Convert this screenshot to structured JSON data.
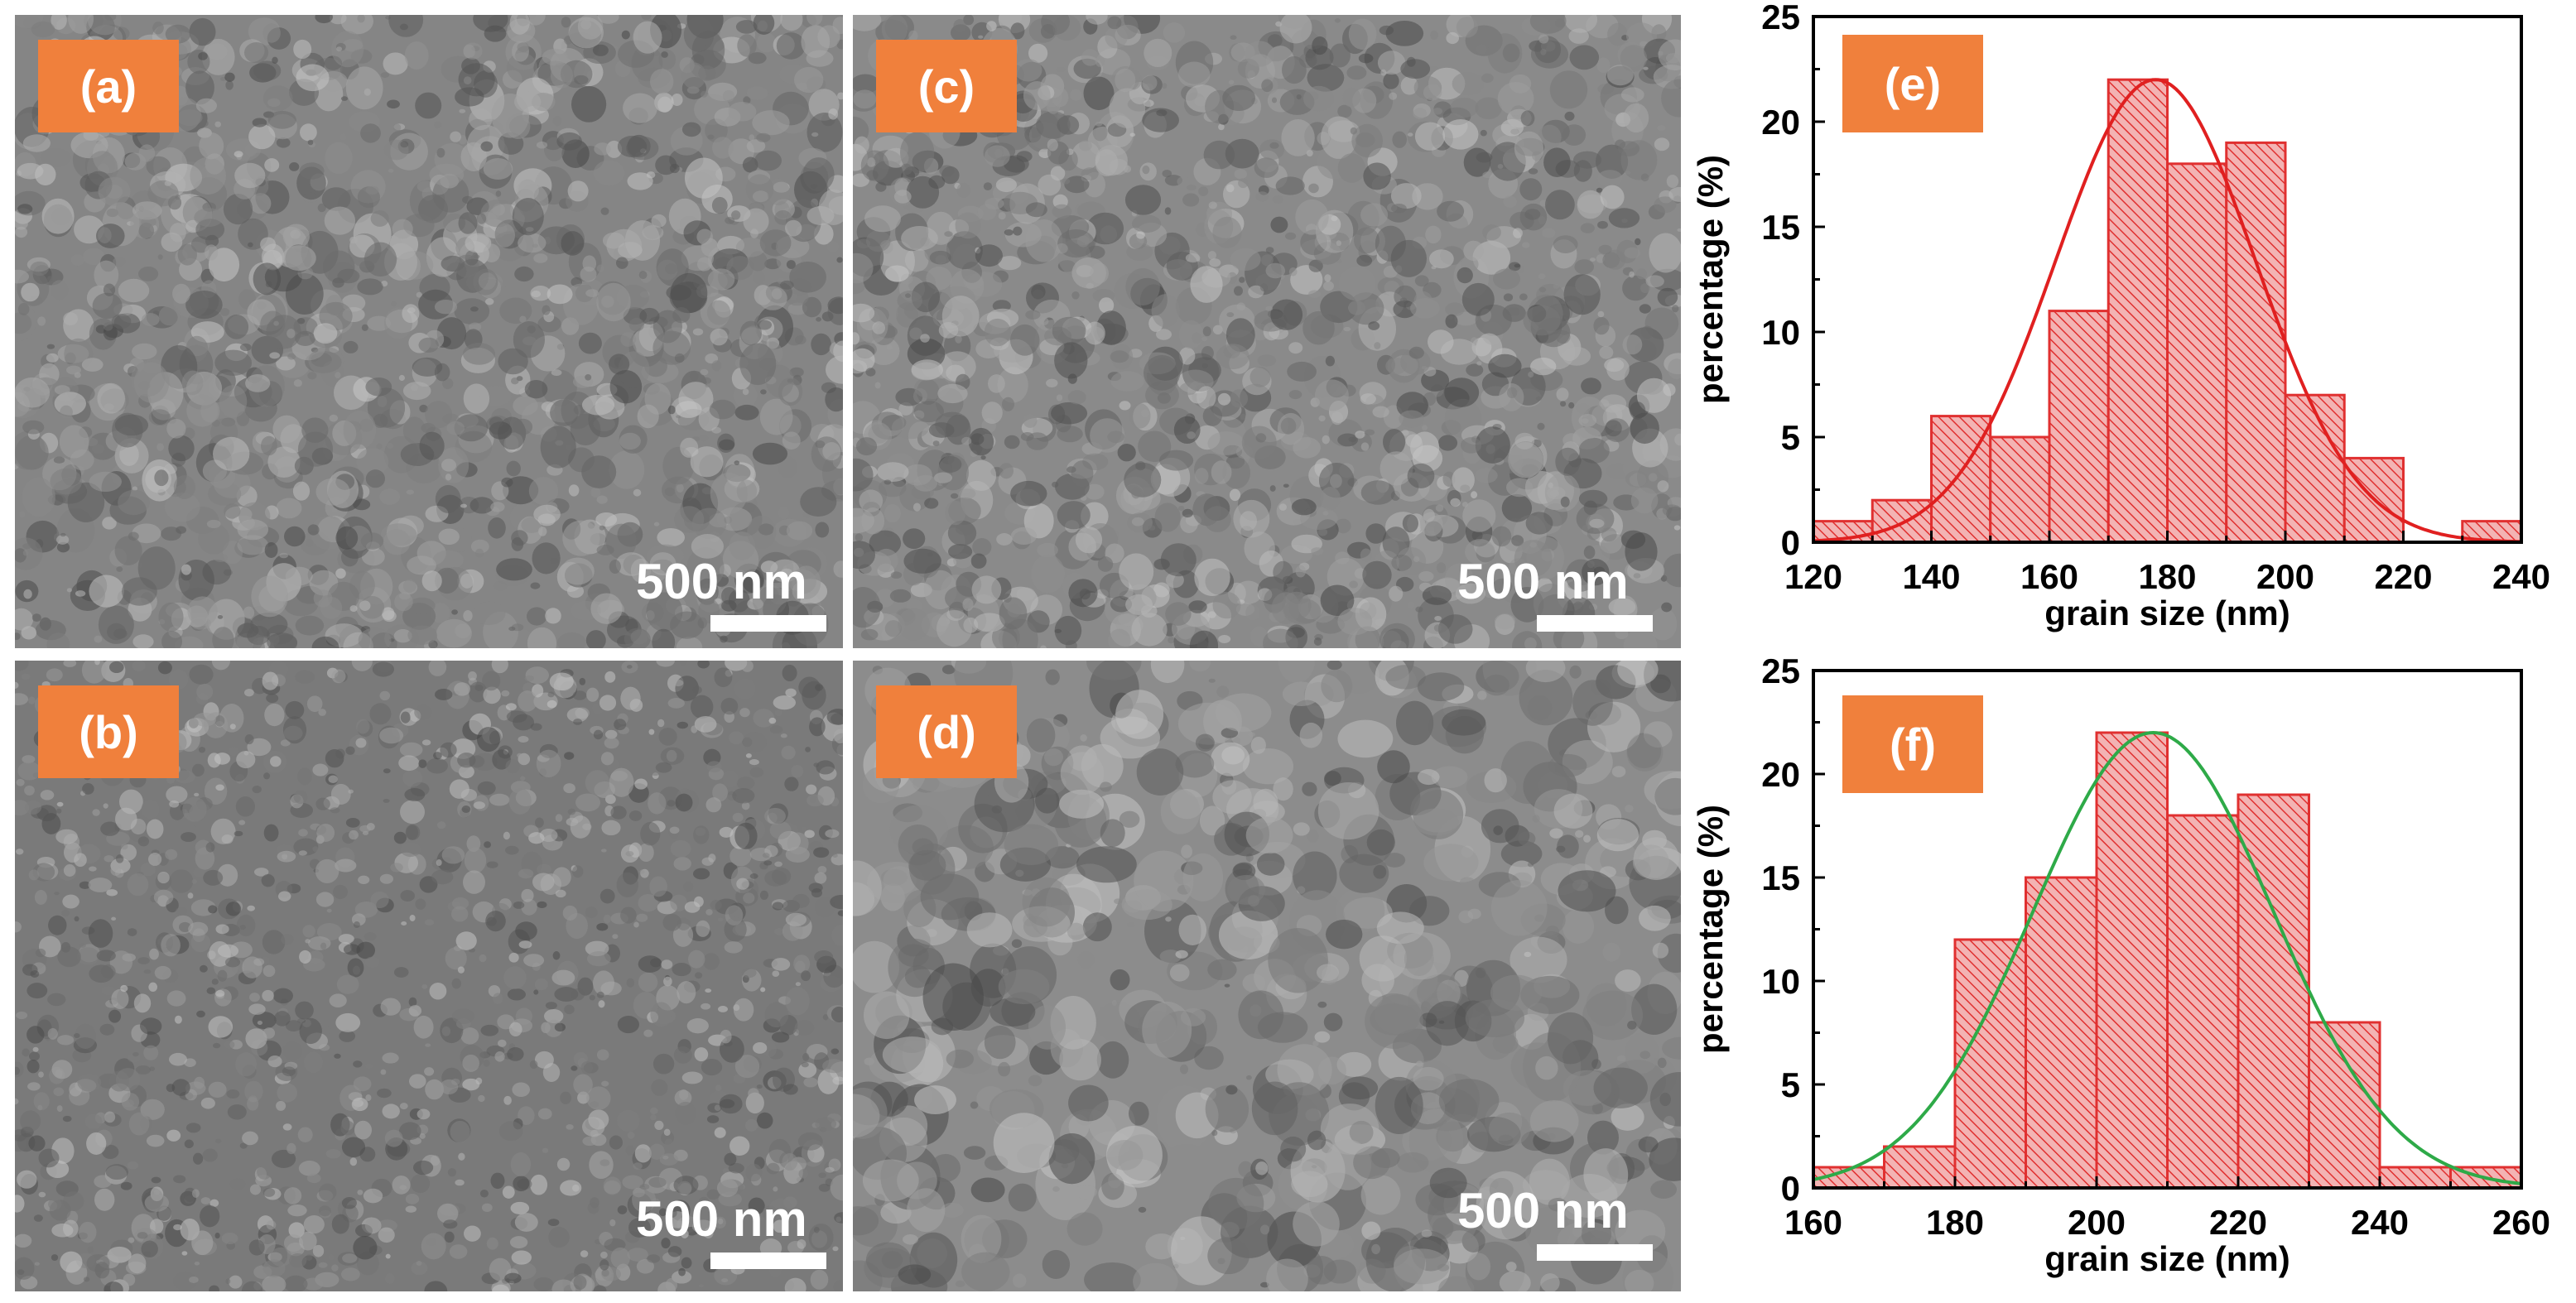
{
  "panels": [
    {
      "id": "a",
      "label": "(a)",
      "scale": "500 nm",
      "tone": "#858585"
    },
    {
      "id": "b",
      "label": "(b)",
      "scale": "500 nm",
      "tone": "#7a7a7a"
    },
    {
      "id": "c",
      "label": "(c)",
      "scale": "500 nm",
      "tone": "#8a8a8a"
    },
    {
      "id": "d",
      "label": "(d)",
      "scale": "500 nm",
      "tone": "#8c8c8c"
    }
  ],
  "colors": {
    "label_bg": "#f0803c",
    "bar": "#e03030",
    "bar_fill": "#f3b3b3",
    "fit_e": "#e02020",
    "fit_f": "#2eaa48"
  },
  "chart_data": [
    {
      "type": "bar",
      "panel_label": "(e)",
      "xlabel": "grain size (nm)",
      "ylabel": "percentage (%)",
      "xlim": [
        120,
        240
      ],
      "ylim": [
        0,
        25
      ],
      "xticks": [
        120,
        140,
        160,
        180,
        200,
        220,
        240
      ],
      "yticks": [
        0,
        5,
        10,
        15,
        20,
        25
      ],
      "bin_width": 10,
      "bin_starts": [
        120,
        130,
        140,
        150,
        160,
        170,
        180,
        190,
        200,
        210,
        220,
        230
      ],
      "values": [
        1,
        2,
        6,
        5,
        11,
        22,
        18,
        19,
        7,
        4,
        0,
        1
      ],
      "fit": {
        "type": "gaussian",
        "peak": 22,
        "center": 178,
        "sigma": 17
      }
    },
    {
      "type": "bar",
      "panel_label": "(f)",
      "xlabel": "grain size (nm)",
      "ylabel": "percentage (%)",
      "xlim": [
        160,
        260
      ],
      "ylim": [
        0,
        25
      ],
      "xticks": [
        160,
        180,
        200,
        220,
        240,
        260
      ],
      "yticks": [
        0,
        5,
        10,
        15,
        20,
        25
      ],
      "bin_width": 10,
      "bin_starts": [
        160,
        170,
        180,
        190,
        200,
        210,
        220,
        230,
        240,
        250
      ],
      "values": [
        1,
        2,
        12,
        15,
        22,
        18,
        19,
        8,
        1,
        1
      ],
      "fit": {
        "type": "gaussian",
        "peak": 22,
        "center": 208,
        "sigma": 17
      }
    }
  ]
}
